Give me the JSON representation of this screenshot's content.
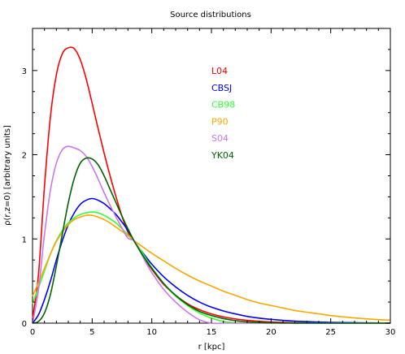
{
  "chart_data": {
    "type": "line",
    "title": "Source distributions",
    "xlabel": "r [kpc]",
    "ylabel": "ρ(r,z=0) [arbitrary units]",
    "xlim": [
      0,
      30
    ],
    "ylim": [
      0,
      3.5
    ],
    "xticks": [
      0,
      5,
      10,
      15,
      20,
      25,
      30
    ],
    "yticks": [
      0,
      1,
      2,
      3
    ],
    "grid": false,
    "legend_position": "upper-center",
    "x": [
      0,
      0.5,
      1,
      1.5,
      2,
      2.5,
      3,
      3.5,
      4,
      4.5,
      5,
      5.5,
      6,
      6.5,
      7,
      7.5,
      8,
      8.5,
      9,
      9.5,
      10,
      11,
      12,
      13,
      14,
      15,
      16,
      17,
      18,
      19,
      20,
      21,
      22,
      23,
      24,
      25,
      26,
      27,
      28,
      29,
      30
    ],
    "series": [
      {
        "name": "L04",
        "color": "#ff0000",
        "values": [
          0.05,
          0.58,
          1.62,
          2.45,
          2.95,
          3.2,
          3.27,
          3.26,
          3.13,
          2.9,
          2.61,
          2.31,
          2.02,
          1.75,
          1.5,
          1.27,
          1.08,
          0.98,
          0.86,
          0.74,
          0.64,
          0.46,
          0.33,
          0.23,
          0.16,
          0.11,
          0.075,
          0.05,
          0.033,
          0.022,
          0.014,
          0.009,
          0.006,
          0.004,
          0.002,
          0.0015,
          0.001,
          0.0006,
          0.0004,
          0.0002,
          0.0001
        ]
      },
      {
        "name": "CBSJ",
        "color": "#0000ff",
        "values": [
          0,
          0.1,
          0.28,
          0.5,
          0.75,
          0.98,
          1.17,
          1.31,
          1.41,
          1.46,
          1.48,
          1.46,
          1.42,
          1.36,
          1.29,
          1.2,
          1.1,
          0.98,
          0.88,
          0.79,
          0.7,
          0.55,
          0.43,
          0.33,
          0.25,
          0.19,
          0.145,
          0.11,
          0.08,
          0.06,
          0.045,
          0.033,
          0.024,
          0.018,
          0.013,
          0.009,
          0.007,
          0.005,
          0.0035,
          0.0025,
          0.002
        ]
      },
      {
        "name": "CB98",
        "color": "#33ff33",
        "values": [
          0.23,
          0.42,
          0.62,
          0.82,
          0.98,
          1.1,
          1.19,
          1.25,
          1.29,
          1.31,
          1.32,
          1.31,
          1.28,
          1.24,
          1.19,
          1.12,
          1.05,
          0.98,
          0.88,
          0.77,
          0.66,
          0.47,
          0.32,
          0.21,
          0.12,
          0.06,
          0.02,
          0.005,
          0,
          0,
          0,
          0,
          0,
          0,
          0,
          0,
          0,
          0,
          0,
          0,
          0
        ]
      },
      {
        "name": "P90",
        "color": "#ffa500",
        "values": [
          0.32,
          0.48,
          0.65,
          0.82,
          0.97,
          1.08,
          1.17,
          1.23,
          1.26,
          1.28,
          1.28,
          1.26,
          1.23,
          1.19,
          1.14,
          1.09,
          1.04,
          0.98,
          0.93,
          0.88,
          0.83,
          0.74,
          0.65,
          0.57,
          0.5,
          0.44,
          0.38,
          0.33,
          0.28,
          0.24,
          0.21,
          0.18,
          0.15,
          0.13,
          0.11,
          0.09,
          0.075,
          0.062,
          0.051,
          0.042,
          0.035
        ]
      },
      {
        "name": "S04",
        "color": "#cc77ee",
        "values": [
          0,
          0.4,
          1.05,
          1.58,
          1.9,
          2.06,
          2.1,
          2.08,
          2.05,
          1.98,
          1.86,
          1.71,
          1.55,
          1.4,
          1.26,
          1.13,
          1.01,
          0.98,
          0.86,
          0.72,
          0.6,
          0.4,
          0.25,
          0.13,
          0.04,
          0,
          0,
          0,
          0,
          0,
          0,
          0,
          0,
          0,
          0,
          0,
          0,
          0,
          0,
          0,
          0
        ]
      },
      {
        "name": "YK04",
        "color": "#006400",
        "values": [
          0,
          0.02,
          0.12,
          0.34,
          0.68,
          1.06,
          1.43,
          1.72,
          1.9,
          1.96,
          1.95,
          1.88,
          1.75,
          1.59,
          1.43,
          1.27,
          1.12,
          0.98,
          0.86,
          0.75,
          0.65,
          0.47,
          0.33,
          0.22,
          0.14,
          0.09,
          0.055,
          0.03,
          0.015,
          0.008,
          0.004,
          0.002,
          0.001,
          0,
          0,
          0,
          0,
          0,
          0,
          0,
          0
        ]
      }
    ]
  }
}
